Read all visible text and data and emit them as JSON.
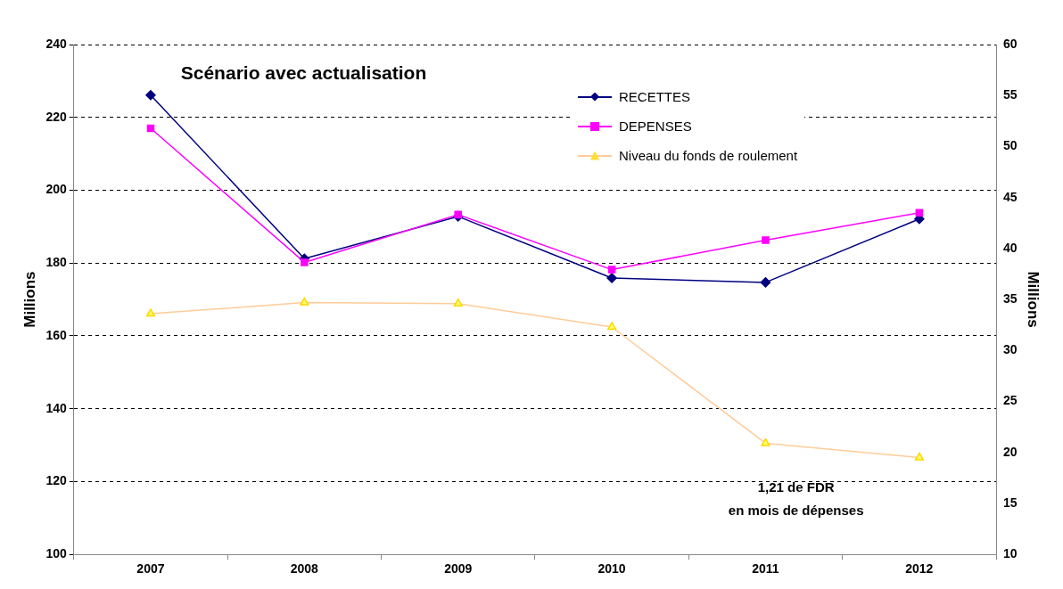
{
  "chart_data": {
    "type": "line",
    "title": "Scénario avec actualisation",
    "categories": [
      "2007",
      "2008",
      "2009",
      "2010",
      "2011",
      "2012"
    ],
    "series": [
      {
        "name": "RECETTES",
        "color": "#000080",
        "marker": "diamond",
        "values": [
          226.1,
          181.2,
          192.8,
          175.9,
          174.7,
          192.1
        ]
      },
      {
        "name": "DEPENSES",
        "color": "#ff00ff",
        "marker": "square",
        "values": [
          217.0,
          180.2,
          193.3,
          178.2,
          186.3,
          193.8
        ]
      },
      {
        "name": "Niveau du fonds de roulement",
        "color": "#ffcc99",
        "marker": "triangle",
        "axis": "y2",
        "values": [
          33.6,
          34.7,
          34.6,
          32.3,
          20.9,
          19.5
        ]
      }
    ],
    "ylabel": "Millions",
    "y2label": "Millions",
    "ylim": [
      100,
      240
    ],
    "yticks": [
      100,
      120,
      140,
      160,
      180,
      200,
      220,
      240
    ],
    "y2lim": [
      10,
      60
    ],
    "y2ticks": [
      10,
      15,
      20,
      25,
      30,
      35,
      40,
      45,
      50,
      55,
      60
    ],
    "grid": "y",
    "legend": "top",
    "line_style": "solid",
    "annotations": [
      "1,21 de FDR\nen mois de dépenses"
    ]
  }
}
